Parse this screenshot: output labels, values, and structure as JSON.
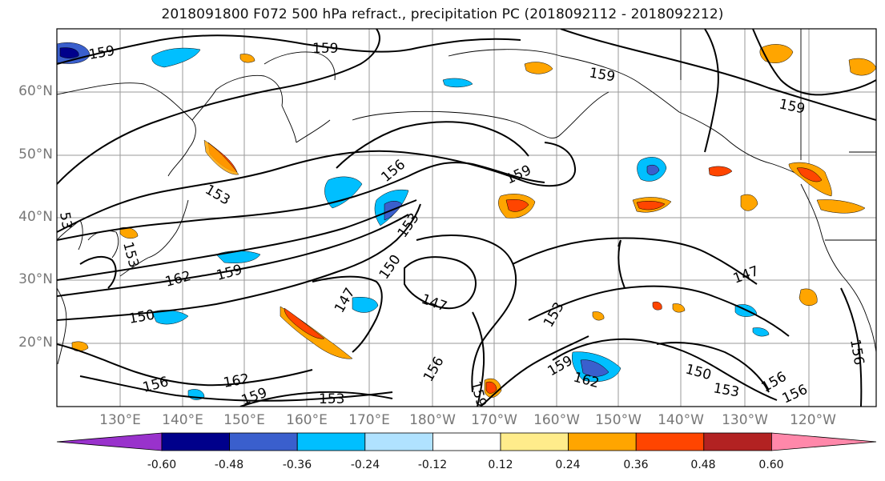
{
  "title": "2018091800 F072 500 hPa refract., precipitation PC (2018092112 - 2018092212)",
  "lat_labels": [
    "60°N",
    "50°N",
    "40°N",
    "30°N",
    "20°N"
  ],
  "lon_labels": [
    "130°E",
    "140°E",
    "150°E",
    "160°E",
    "170°E",
    "180°W",
    "170°W",
    "160°W",
    "150°W",
    "140°W",
    "130°W",
    "120°W"
  ],
  "contour_labels": [
    "159",
    "159",
    "159",
    "159",
    "159",
    "156",
    "153",
    "153",
    "150",
    "147",
    "147",
    "147",
    "162",
    "159",
    "150",
    "156",
    "162",
    "159",
    "153",
    "156",
    "159",
    "153",
    "162",
    "159",
    "150",
    "153",
    "156",
    "156",
    "156",
    "153",
    "53"
  ],
  "colorbar": {
    "colors": [
      "#9932cc",
      "#00008b",
      "#3a5fcd",
      "#00bfff",
      "#b0e2ff",
      "#ffffff",
      "#ffec8b",
      "#ffa500",
      "#ff4500",
      "#b22222",
      "#ff88aa"
    ],
    "tick_labels": [
      "-0.60",
      "-0.48",
      "-0.36",
      "-0.24",
      "-0.12",
      "0.12",
      "0.24",
      "0.36",
      "0.48",
      "0.60"
    ]
  }
}
